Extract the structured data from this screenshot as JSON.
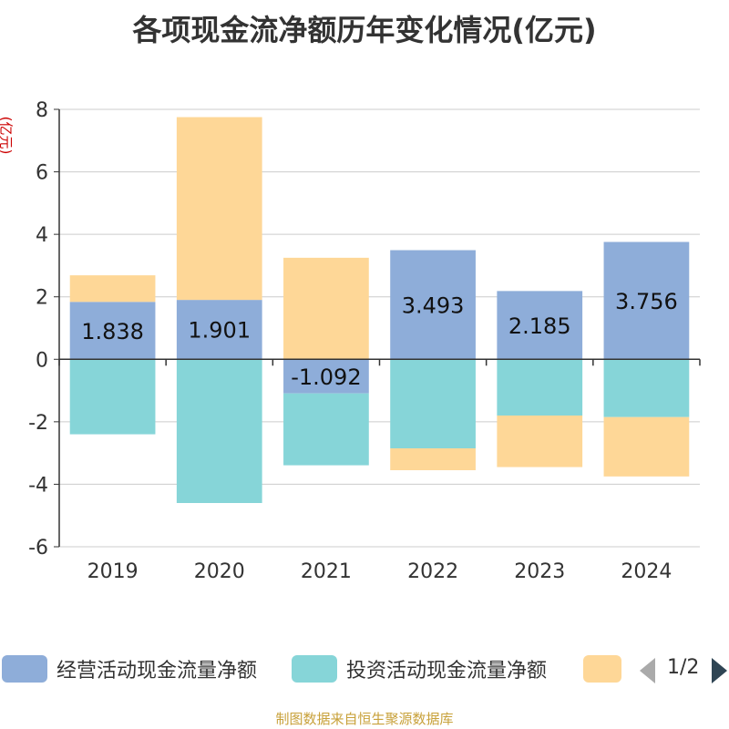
{
  "chart_data": {
    "type": "bar",
    "stacked": true,
    "title": "各项现金流净额历年变化情况(亿元)",
    "ylabel": "(亿元)",
    "categories": [
      "2019",
      "2020",
      "2021",
      "2022",
      "2023",
      "2024"
    ],
    "ylim": [
      -6,
      8
    ],
    "yticks": [
      -6,
      -4,
      -2,
      0,
      2,
      4,
      6,
      8
    ],
    "series": [
      {
        "name": "经营活动现金流量净额",
        "color": "#8eadd9",
        "values": [
          1.838,
          1.901,
          -1.092,
          3.493,
          2.185,
          3.756
        ],
        "labels": [
          "1.838",
          "1.901",
          "-1.092",
          "3.493",
          "2.185",
          "3.756"
        ]
      },
      {
        "name": "投资活动现金流量净额",
        "color": "#86d5d8",
        "values": [
          -2.4,
          -4.6,
          -2.3,
          -2.85,
          -1.8,
          -1.85
        ]
      },
      {
        "name": "",
        "color": "#fed797",
        "values": [
          0.85,
          5.85,
          3.25,
          -0.7,
          -1.65,
          -1.9
        ]
      }
    ],
    "grid": true
  },
  "legend": {
    "items": [
      {
        "name": "经营活动现金流量净额",
        "color": "#8eadd9"
      },
      {
        "name": "投资活动现金流量净额",
        "color": "#86d5d8"
      },
      {
        "name": "",
        "color": "#fed797"
      }
    ],
    "page": "1/2"
  },
  "source": "制图数据来自恒生聚源数据库"
}
